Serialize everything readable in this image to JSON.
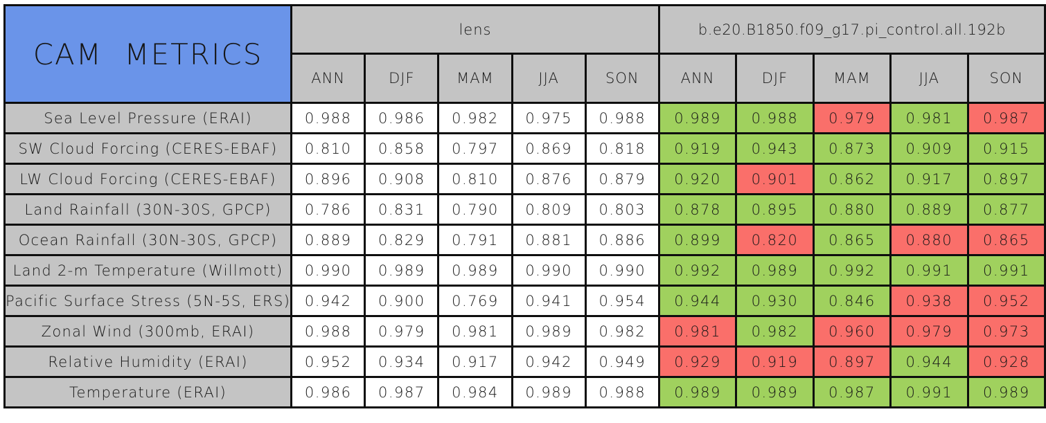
{
  "colors": {
    "title_blue": "#6a94e9",
    "header_gray": "#c4c4c4",
    "green": "#a0d15e",
    "red": "#fa6f6a",
    "border_black": "#0e0e0e",
    "lens_cell_white": "#ffffff"
  },
  "chart_data": {
    "type": "table",
    "title": "CAM METRICS",
    "column_groups": [
      {
        "label": "lens",
        "columns": [
          "ANN",
          "DJF",
          "MAM",
          "JJA",
          "SON"
        ]
      },
      {
        "label": "b.e20.B1850.f09_g17.pi_control.all.192b",
        "columns": [
          "ANN",
          "DJF",
          "MAM",
          "JJA",
          "SON"
        ]
      }
    ],
    "rows": [
      {
        "label": "Sea Level Pressure (ERAI)",
        "lens": [
          "0.988",
          "0.986",
          "0.982",
          "0.975",
          "0.988"
        ],
        "case": [
          {
            "v": "0.989",
            "state": "green"
          },
          {
            "v": "0.988",
            "state": "green"
          },
          {
            "v": "0.979",
            "state": "red"
          },
          {
            "v": "0.981",
            "state": "green"
          },
          {
            "v": "0.987",
            "state": "red"
          }
        ]
      },
      {
        "label": "SW Cloud Forcing (CERES-EBAF)",
        "lens": [
          "0.810",
          "0.858",
          "0.797",
          "0.869",
          "0.818"
        ],
        "case": [
          {
            "v": "0.919",
            "state": "green"
          },
          {
            "v": "0.943",
            "state": "green"
          },
          {
            "v": "0.873",
            "state": "green"
          },
          {
            "v": "0.909",
            "state": "green"
          },
          {
            "v": "0.915",
            "state": "green"
          }
        ]
      },
      {
        "label": "LW Cloud Forcing (CERES-EBAF)",
        "lens": [
          "0.896",
          "0.908",
          "0.810",
          "0.876",
          "0.879"
        ],
        "case": [
          {
            "v": "0.920",
            "state": "green"
          },
          {
            "v": "0.901",
            "state": "red"
          },
          {
            "v": "0.862",
            "state": "green"
          },
          {
            "v": "0.917",
            "state": "green"
          },
          {
            "v": "0.897",
            "state": "green"
          }
        ]
      },
      {
        "label": "Land Rainfall (30N-30S, GPCP)",
        "lens": [
          "0.786",
          "0.831",
          "0.790",
          "0.809",
          "0.803"
        ],
        "case": [
          {
            "v": "0.878",
            "state": "green"
          },
          {
            "v": "0.895",
            "state": "green"
          },
          {
            "v": "0.880",
            "state": "green"
          },
          {
            "v": "0.889",
            "state": "green"
          },
          {
            "v": "0.877",
            "state": "green"
          }
        ]
      },
      {
        "label": "Ocean Rainfall (30N-30S, GPCP)",
        "lens": [
          "0.889",
          "0.829",
          "0.791",
          "0.881",
          "0.886"
        ],
        "case": [
          {
            "v": "0.899",
            "state": "green"
          },
          {
            "v": "0.820",
            "state": "red"
          },
          {
            "v": "0.865",
            "state": "green"
          },
          {
            "v": "0.880",
            "state": "red"
          },
          {
            "v": "0.865",
            "state": "red"
          }
        ]
      },
      {
        "label": "Land 2-m Temperature (Willmott)",
        "lens": [
          "0.990",
          "0.989",
          "0.989",
          "0.990",
          "0.990"
        ],
        "case": [
          {
            "v": "0.992",
            "state": "green"
          },
          {
            "v": "0.989",
            "state": "green"
          },
          {
            "v": "0.992",
            "state": "green"
          },
          {
            "v": "0.991",
            "state": "green"
          },
          {
            "v": "0.991",
            "state": "green"
          }
        ]
      },
      {
        "label": "Pacific Surface Stress (5N-5S, ERS)",
        "lens": [
          "0.942",
          "0.900",
          "0.769",
          "0.941",
          "0.954"
        ],
        "case": [
          {
            "v": "0.944",
            "state": "green"
          },
          {
            "v": "0.930",
            "state": "green"
          },
          {
            "v": "0.846",
            "state": "green"
          },
          {
            "v": "0.938",
            "state": "red"
          },
          {
            "v": "0.952",
            "state": "red"
          }
        ]
      },
      {
        "label": "Zonal Wind (300mb, ERAI)",
        "lens": [
          "0.988",
          "0.979",
          "0.981",
          "0.989",
          "0.982"
        ],
        "case": [
          {
            "v": "0.981",
            "state": "red"
          },
          {
            "v": "0.982",
            "state": "green"
          },
          {
            "v": "0.960",
            "state": "red"
          },
          {
            "v": "0.979",
            "state": "red"
          },
          {
            "v": "0.973",
            "state": "red"
          }
        ]
      },
      {
        "label": "Relative Humidity (ERAI)",
        "lens": [
          "0.952",
          "0.934",
          "0.917",
          "0.942",
          "0.949"
        ],
        "case": [
          {
            "v": "0.929",
            "state": "red"
          },
          {
            "v": "0.919",
            "state": "red"
          },
          {
            "v": "0.897",
            "state": "red"
          },
          {
            "v": "0.944",
            "state": "green"
          },
          {
            "v": "0.928",
            "state": "red"
          }
        ]
      },
      {
        "label": "Temperature (ERAI)",
        "lens": [
          "0.986",
          "0.987",
          "0.984",
          "0.989",
          "0.988"
        ],
        "case": [
          {
            "v": "0.989",
            "state": "green"
          },
          {
            "v": "0.989",
            "state": "green"
          },
          {
            "v": "0.987",
            "state": "green"
          },
          {
            "v": "0.991",
            "state": "green"
          },
          {
            "v": "0.989",
            "state": "green"
          }
        ]
      }
    ]
  }
}
